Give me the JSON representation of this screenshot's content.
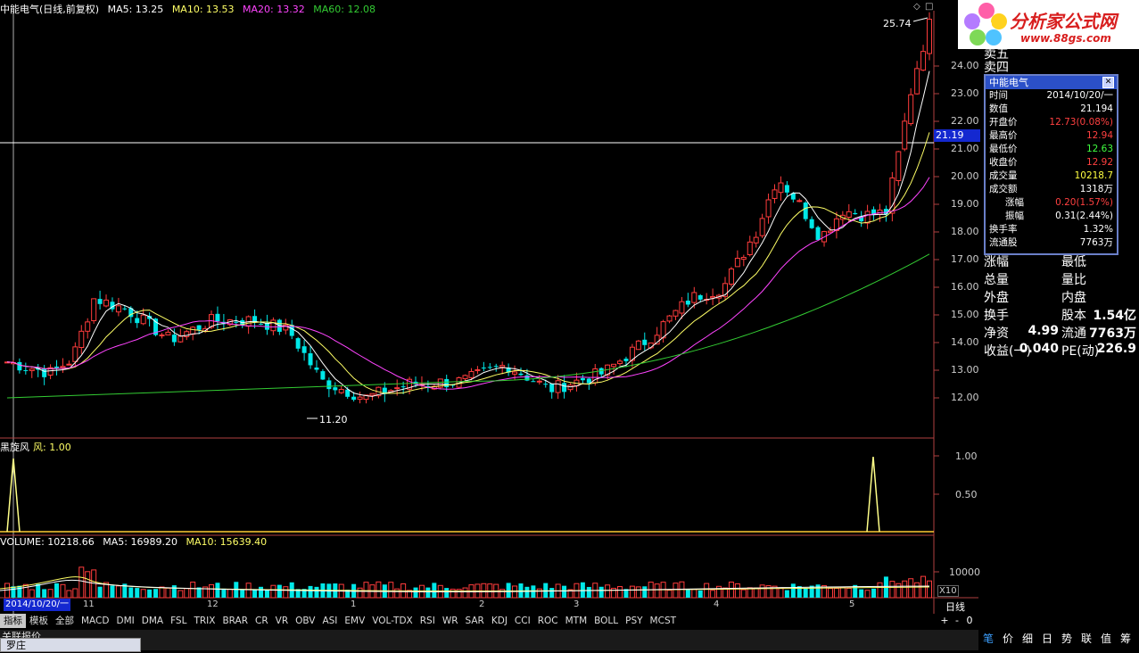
{
  "header": {
    "title": "中能电气(日线,前复权)",
    "ma5": "MA5: 13.25",
    "ma10": "MA10: 13.53",
    "ma20": "MA20: 13.32",
    "ma60": "MA60: 12.08"
  },
  "price_axis": [
    "24.00",
    "23.00",
    "22.00",
    "21.00",
    "20.00",
    "19.00",
    "18.00",
    "17.00",
    "16.00",
    "15.00",
    "14.00",
    "13.00",
    "12.00"
  ],
  "annotations": {
    "high": "25.74",
    "low": "11.20",
    "cursor_price": "21.19"
  },
  "indicator": {
    "title": "黑旋风",
    "value": "风: 1.00",
    "axis": [
      "1.00",
      "0.50"
    ]
  },
  "volume": {
    "title": "VOLUME: 10218.66",
    "ma5": "MA5: 16989.20",
    "ma10": "MA10: 15639.40",
    "axis": "10000",
    "unit": "X10"
  },
  "date_axis": {
    "cursor_date": "2014/10/20/一",
    "months": [
      "11",
      "12",
      "1",
      "2",
      "3",
      "4",
      "5"
    ],
    "period": "日线"
  },
  "tabs": [
    "指标",
    "模板",
    "全部",
    "MACD",
    "DMI",
    "DMA",
    "FSL",
    "TRIX",
    "BRAR",
    "CR",
    "VR",
    "OBV",
    "ASI",
    "EMV",
    "VOL-TDX",
    "RSI",
    "WR",
    "SAR",
    "KDJ",
    "CCI",
    "ROC",
    "MTM",
    "BOLL",
    "PSY",
    "MCST"
  ],
  "zoom_controls": [
    "+",
    "-",
    "0"
  ],
  "bottom_tabs": [
    "关联报价",
    "罗庄"
  ],
  "bottom_left_label": "关联报价",
  "tooltip": {
    "title": "中能电气",
    "rows": [
      {
        "k": "时间",
        "v": "2014/10/20/一",
        "c": "#fff"
      },
      {
        "k": "数值",
        "v": "21.194",
        "c": "#fff"
      },
      {
        "k": "开盘价",
        "v": "12.73(0.08%)",
        "c": "#ff4040"
      },
      {
        "k": "最高价",
        "v": "12.94",
        "c": "#ff4040"
      },
      {
        "k": "最低价",
        "v": "12.63",
        "c": "#40ff40"
      },
      {
        "k": "收盘价",
        "v": "12.92",
        "c": "#ff4040"
      },
      {
        "k": "成交量",
        "v": "10218.7",
        "c": "#ffff40"
      },
      {
        "k": "成交额",
        "v": "1318万",
        "c": "#fff"
      },
      {
        "k": "涨幅",
        "v": "0.20(1.57%)",
        "c": "#ff4040"
      },
      {
        "k": "振幅",
        "v": "0.31(2.44%)",
        "c": "#fff"
      },
      {
        "k": "换手率",
        "v": "1.32%",
        "c": "#fff"
      },
      {
        "k": "流通股",
        "v": "7763万",
        "c": "#fff"
      }
    ]
  },
  "logo": {
    "text": "分析家公式网",
    "url": "www.88gs.com"
  },
  "right_panel": {
    "partial_top": [
      "卖五",
      "卖四"
    ],
    "rows": [
      {
        "l": "涨幅",
        "m": "最低",
        "r": ""
      },
      {
        "l": "总量",
        "m": "量比",
        "r": ""
      },
      {
        "l": "外盘",
        "m": "内盘",
        "r": ""
      },
      {
        "l": "换手",
        "m": "股本",
        "r": "1.54亿"
      },
      {
        "l": "净资",
        "lv": "4.99",
        "m": "流通",
        "r": "7763万"
      },
      {
        "l": "收益(一)",
        "lv": "0.040",
        "m": "PE(动)",
        "r": "226.9"
      }
    ],
    "tabs": [
      "笔",
      "价",
      "细",
      "日",
      "势",
      "联",
      "值",
      "筹"
    ]
  },
  "colors": {
    "up": "#ff3c3c",
    "down": "#00e8e8",
    "ma5": "#ffffff",
    "ma10": "#ffff66",
    "ma20": "#ff44ff",
    "ma60": "#33cc33"
  }
}
